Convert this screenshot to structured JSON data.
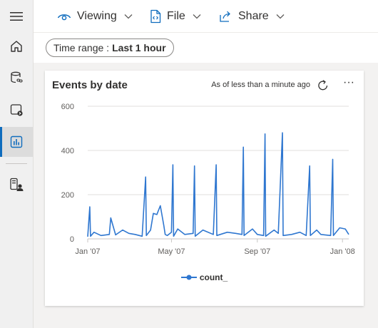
{
  "rail": {
    "items": [
      {
        "icon": "hamburger-icon"
      },
      {
        "icon": "home-icon"
      },
      {
        "icon": "database-link-icon"
      },
      {
        "icon": "query-icon"
      },
      {
        "icon": "dashboard-icon",
        "active": true
      },
      {
        "icon": "device-user-icon"
      }
    ]
  },
  "toolbar": {
    "viewing_label": "Viewing",
    "file_label": "File",
    "share_label": "Share"
  },
  "filters": {
    "time_range_label": "Time range :",
    "time_range_value": "Last 1 hour"
  },
  "card": {
    "title": "Events by date",
    "as_of": "As of less than a minute ago",
    "more": "···"
  },
  "colors": {
    "series": "#2f77d0",
    "accent": "#0f6cbd",
    "grid": "#e1dfdd"
  },
  "chart_data": {
    "type": "line",
    "x_ticks": [
      "Jan '07",
      "May '07",
      "Sep '07",
      "Jan '08"
    ],
    "y_ticks": [
      "0",
      "200",
      "400",
      "600"
    ],
    "ylim": [
      0,
      600
    ],
    "xlim": [
      "2007-01-01",
      "2008-01-10"
    ],
    "legend_position": "bottom",
    "series": [
      {
        "name": "count_",
        "x": [
          "2007-01-01",
          "2007-01-04",
          "2007-01-05",
          "2007-01-10",
          "2007-01-20",
          "2007-02-01",
          "2007-02-03",
          "2007-02-10",
          "2007-02-20",
          "2007-03-01",
          "2007-03-10",
          "2007-03-20",
          "2007-03-25",
          "2007-03-26",
          "2007-04-01",
          "2007-04-05",
          "2007-04-10",
          "2007-04-15",
          "2007-04-20",
          "2007-04-22",
          "2007-04-25",
          "2007-05-01",
          "2007-05-03",
          "2007-05-04",
          "2007-05-10",
          "2007-05-20",
          "2007-06-01",
          "2007-06-03",
          "2007-06-04",
          "2007-06-15",
          "2007-06-30",
          "2007-07-04",
          "2007-07-05",
          "2007-07-20",
          "2007-08-01",
          "2007-08-10",
          "2007-08-12",
          "2007-08-13",
          "2007-08-25",
          "2007-09-01",
          "2007-09-10",
          "2007-09-12",
          "2007-09-13",
          "2007-09-25",
          "2007-10-01",
          "2007-10-07",
          "2007-10-08",
          "2007-10-20",
          "2007-11-01",
          "2007-11-10",
          "2007-11-15",
          "2007-11-16",
          "2007-11-25",
          "2007-12-01",
          "2007-12-15",
          "2007-12-18",
          "2007-12-19",
          "2007-12-28",
          "2008-01-05",
          "2008-01-10"
        ],
        "y": [
          10,
          145,
          12,
          30,
          15,
          20,
          95,
          18,
          40,
          25,
          20,
          12,
          280,
          15,
          40,
          115,
          110,
          150,
          60,
          20,
          15,
          30,
          335,
          12,
          45,
          20,
          25,
          330,
          12,
          40,
          20,
          335,
          15,
          30,
          25,
          20,
          415,
          15,
          45,
          20,
          15,
          475,
          12,
          40,
          25,
          480,
          15,
          20,
          30,
          15,
          330,
          15,
          40,
          20,
          15,
          360,
          15,
          50,
          45,
          20
        ]
      }
    ]
  }
}
